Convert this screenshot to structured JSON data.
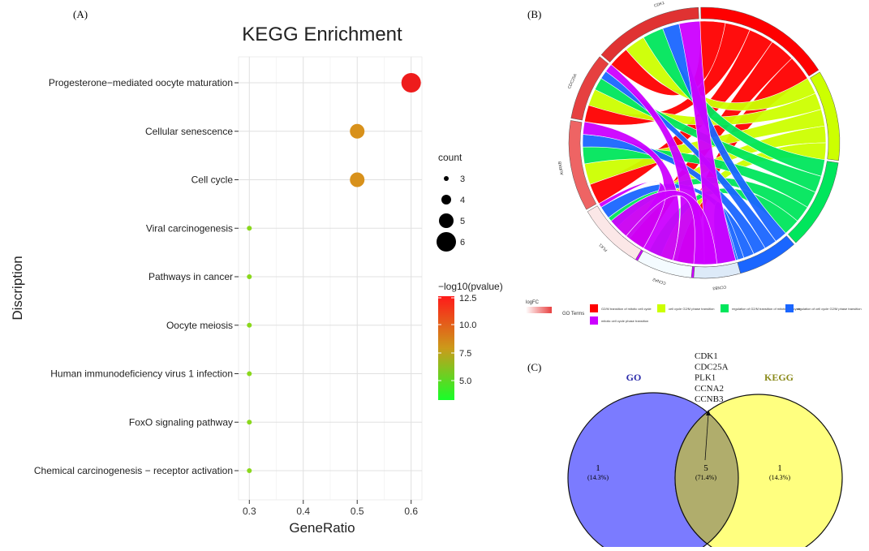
{
  "panels": {
    "a": "(A)",
    "b": "(B)",
    "c": "(C)"
  },
  "chart_data": [
    {
      "type": "scatter",
      "title": "KEGG Enrichment",
      "xlabel": "GeneRatio",
      "ylabel": "Discription",
      "xlim": [
        0.28,
        0.62
      ],
      "xticks": [
        "0.3",
        "0.4",
        "0.5",
        "0.6"
      ],
      "grid": true,
      "categories": [
        "Progesterone−mediated oocyte maturation",
        "Cellular senescence",
        "Cell cycle",
        "Viral carcinogenesis",
        "Pathways in cancer",
        "Oocyte meiosis",
        "Human immunodeficiency virus 1 infection",
        "FoxO signaling pathway",
        "Chemical carcinogenesis − receptor activation"
      ],
      "points": [
        {
          "gene_ratio": 0.6,
          "count": 6,
          "neg_log10_p": 12.5,
          "color": "#ee1c1c"
        },
        {
          "gene_ratio": 0.5,
          "count": 5,
          "neg_log10_p": 10.0,
          "color": "#d8911b"
        },
        {
          "gene_ratio": 0.5,
          "count": 5,
          "neg_log10_p": 10.0,
          "color": "#d8911b"
        },
        {
          "gene_ratio": 0.3,
          "count": 3,
          "neg_log10_p": 4.0,
          "color": "#8ad81c"
        },
        {
          "gene_ratio": 0.3,
          "count": 3,
          "neg_log10_p": 4.0,
          "color": "#8ad81c"
        },
        {
          "gene_ratio": 0.3,
          "count": 3,
          "neg_log10_p": 4.0,
          "color": "#8ad81c"
        },
        {
          "gene_ratio": 0.3,
          "count": 3,
          "neg_log10_p": 4.0,
          "color": "#8ad81c"
        },
        {
          "gene_ratio": 0.3,
          "count": 3,
          "neg_log10_p": 4.0,
          "color": "#8ad81c"
        },
        {
          "gene_ratio": 0.3,
          "count": 3,
          "neg_log10_p": 4.0,
          "color": "#8ad81c"
        }
      ],
      "legend_size": {
        "title": "count",
        "values": [
          3,
          4,
          5,
          6
        ]
      },
      "legend_color": {
        "title": "−log10(pvalue)",
        "ticks": [
          "12.5",
          "10.0",
          "7.5",
          "5.0"
        ],
        "colors": [
          "#ff1a1a",
          "#cc9a1a",
          "#17ff29"
        ]
      }
    },
    {
      "type": "other",
      "kind": "chord",
      "genes": [
        "CDK1",
        "CDC25A",
        "AURKB",
        "PLK1",
        "CCNA2",
        "CCNB3"
      ],
      "legend_fc_label": "logFC",
      "legend_terms_title": "GO Terms",
      "terms": [
        {
          "label": "G2/M transition of mitotic cell cycle",
          "color": "#ff0000"
        },
        {
          "label": "cell cycle G2/M phase transition",
          "color": "#ccff00"
        },
        {
          "label": "regulation of G2/M transition of mitotic cell cycle",
          "color": "#00e65c"
        },
        {
          "label": "regulation of cell cycle G2/M phase transition",
          "color": "#1a66ff"
        },
        {
          "label": "mitotic cell cycle phase transition",
          "color": "#cc00ff"
        }
      ]
    },
    {
      "type": "other",
      "kind": "venn",
      "sets": [
        {
          "label": "GO",
          "count": "1",
          "pct": "(14.3%)",
          "color": "#7b7bff",
          "label_color": "#2a2aaa"
        },
        {
          "label": "KEGG",
          "count": "1",
          "pct": "(14.3%)",
          "color": "#ffff7f",
          "label_color": "#8a8a1a"
        }
      ],
      "overlap": {
        "count": "5",
        "pct": "(71.4%)",
        "color": "#b0ad6c"
      },
      "overlap_genes": [
        "CDK1",
        "CDC25A",
        "PLK1",
        "CCNA2",
        "CCNB3"
      ]
    }
  ]
}
